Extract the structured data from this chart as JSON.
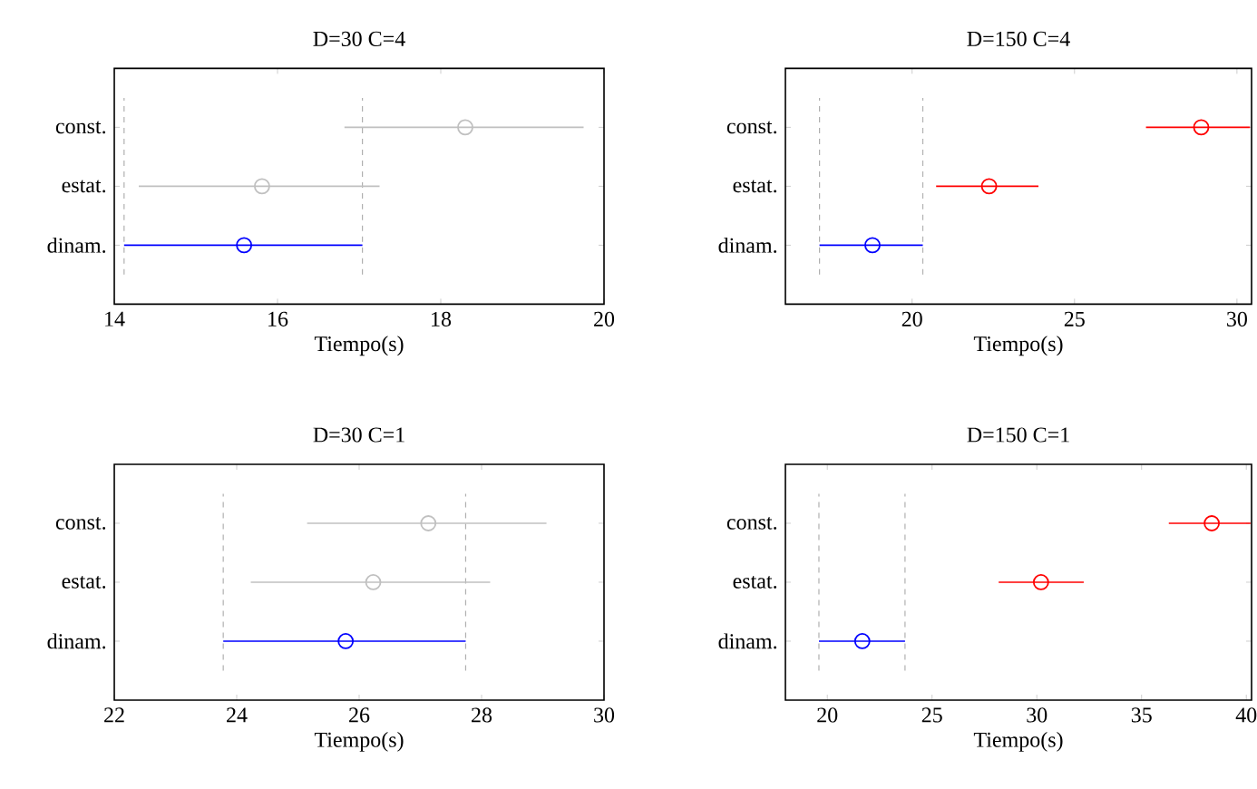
{
  "chart_data": [
    {
      "type": "scatter",
      "title": "D=30 C=4",
      "xlabel": "Tiempo(s)",
      "orientation": "horizontal",
      "marker": "circle",
      "categories": [
        "const.",
        "estat.",
        "dinam."
      ],
      "values": [
        18.3,
        15.81,
        15.59
      ],
      "errors": [
        [
          16.82,
          19.75
        ],
        [
          14.3,
          17.25
        ],
        [
          14.12,
          17.04
        ]
      ],
      "colors": [
        "#c0c0c0",
        "#c0c0c0",
        "#0000ff"
      ],
      "xlim": [
        14,
        20
      ],
      "xticks": [
        14,
        16,
        18,
        20
      ],
      "ref_lines": [
        {
          "axis": "x",
          "value": 14.12,
          "color": "#b0b0b0",
          "line_style": "dashed"
        },
        {
          "axis": "x",
          "value": 17.04,
          "color": "#b0b0b0",
          "line_style": "dashed"
        }
      ]
    },
    {
      "type": "scatter",
      "title": "D=150 C=4",
      "xlabel": "Tiempo(s)",
      "orientation": "horizontal",
      "marker": "circle",
      "categories": [
        "const.",
        "estat.",
        "dinam."
      ],
      "values": [
        28.9,
        22.37,
        18.78
      ],
      "errors": [
        [
          27.2,
          30.4
        ],
        [
          20.74,
          23.89
        ],
        [
          17.15,
          20.33
        ]
      ],
      "colors": [
        "#ff0000",
        "#ff0000",
        "#0000ff"
      ],
      "xlim": [
        16.1,
        30.45
      ],
      "xticks": [
        20,
        25,
        30
      ],
      "ref_lines": [
        {
          "axis": "x",
          "value": 17.15,
          "color": "#b0b0b0",
          "line_style": "dashed"
        },
        {
          "axis": "x",
          "value": 20.33,
          "color": "#b0b0b0",
          "line_style": "dashed"
        }
      ]
    },
    {
      "type": "scatter",
      "title": "D=30 C=1",
      "xlabel": "Tiempo(s)",
      "orientation": "horizontal",
      "marker": "circle",
      "categories": [
        "const.",
        "estat.",
        "dinam."
      ],
      "values": [
        27.13,
        26.23,
        25.78
      ],
      "errors": [
        [
          25.15,
          29.06
        ],
        [
          24.23,
          28.14
        ],
        [
          23.78,
          27.74
        ]
      ],
      "colors": [
        "#c0c0c0",
        "#c0c0c0",
        "#0000ff"
      ],
      "xlim": [
        22,
        30
      ],
      "xticks": [
        22,
        24,
        26,
        28,
        30
      ],
      "ref_lines": [
        {
          "axis": "x",
          "value": 23.78,
          "color": "#b0b0b0",
          "line_style": "dashed"
        },
        {
          "axis": "x",
          "value": 27.74,
          "color": "#b0b0b0",
          "line_style": "dashed"
        }
      ]
    },
    {
      "type": "scatter",
      "title": "D=150 C=1",
      "xlabel": "Tiempo(s)",
      "orientation": "horizontal",
      "marker": "circle",
      "categories": [
        "const.",
        "estat.",
        "dinam."
      ],
      "values": [
        38.35,
        30.2,
        21.67
      ],
      "errors": [
        [
          36.3,
          40.2
        ],
        [
          28.18,
          32.24
        ],
        [
          19.6,
          23.71
        ]
      ],
      "colors": [
        "#ff0000",
        "#ff0000",
        "#0000ff"
      ],
      "xlim": [
        18,
        40.25
      ],
      "xticks": [
        20,
        25,
        30,
        35,
        40
      ],
      "ref_lines": [
        {
          "axis": "x",
          "value": 19.6,
          "color": "#b0b0b0",
          "line_style": "dashed"
        },
        {
          "axis": "x",
          "value": 23.71,
          "color": "#b0b0b0",
          "line_style": "dashed"
        }
      ]
    }
  ]
}
